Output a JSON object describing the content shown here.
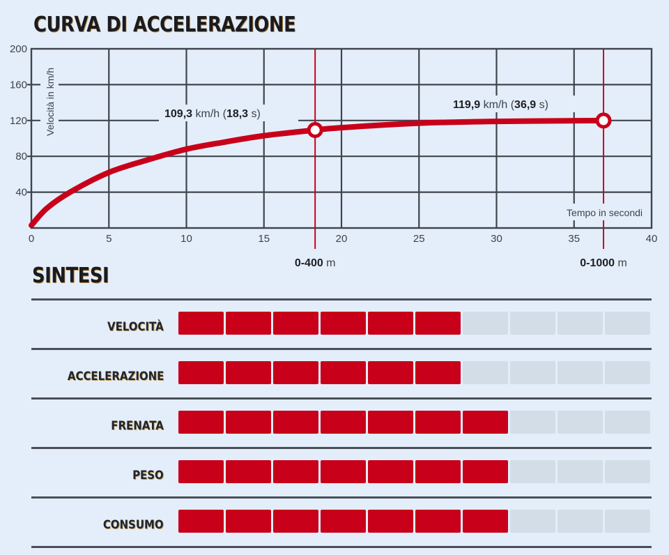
{
  "header": {
    "title": "CURVA DI ACCELERAZIONE"
  },
  "chart_data": {
    "type": "line",
    "title": "CURVA DI ACCELERAZIONE",
    "xlabel": "Tempo in secondi",
    "ylabel": "Velocità in km/h",
    "xlim": [
      0,
      40
    ],
    "ylim": [
      0,
      200
    ],
    "x_ticks": [
      "0",
      "5",
      "10",
      "15",
      "20",
      "25",
      "30",
      "35",
      "40"
    ],
    "y_ticks": [
      "40",
      "80",
      "120",
      "160",
      "200"
    ],
    "grid": true,
    "series": [
      {
        "name": "Velocità",
        "color": "#c8001a",
        "x": [
          0,
          1,
          2.5,
          5,
          7.5,
          10,
          12.5,
          15,
          18.3,
          20,
          25,
          30,
          36.9
        ],
        "y": [
          3,
          22,
          40,
          62,
          76,
          88,
          96,
          103,
          109.3,
          112,
          117,
          119,
          119.9
        ]
      }
    ],
    "markers": [
      {
        "x": 18.3,
        "y": 109.3,
        "label_bold": "109,3",
        "label_unit": "km/h",
        "label_time_bold": "18,3",
        "label_time_unit": "s",
        "distance_bold": "0-400",
        "distance_unit": "m"
      },
      {
        "x": 36.9,
        "y": 119.9,
        "label_bold": "119,9",
        "label_unit": "km/h",
        "label_time_bold": "36,9",
        "label_time_unit": "s",
        "distance_bold": "0-1000",
        "distance_unit": "m"
      }
    ],
    "accent_color": "#c8001a",
    "grid_color": "#3f444c"
  },
  "summary": {
    "title": "SINTESI",
    "max_score": 10,
    "filled_color": "#c8001a",
    "empty_color": "#d2dde8",
    "rows": [
      {
        "label": "VELOCITÀ",
        "score": 6
      },
      {
        "label": "ACCELERAZIONE",
        "score": 6
      },
      {
        "label": "FRENATA",
        "score": 7
      },
      {
        "label": "PESO",
        "score": 7
      },
      {
        "label": "CONSUMO",
        "score": 7
      }
    ]
  }
}
